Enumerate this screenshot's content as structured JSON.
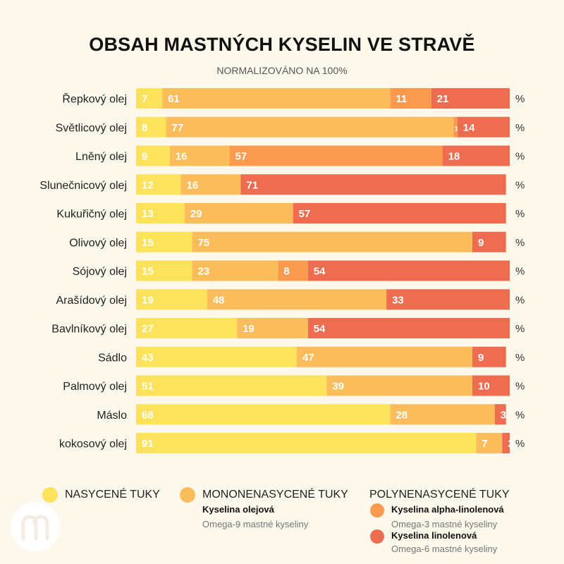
{
  "chart_data": {
    "type": "bar",
    "orientation": "horizontal",
    "stacked": true,
    "title": "OBSAH MASTNÝCH KYSELIN VE STRAVĚ",
    "subtitle": "NORMALIZOVÁNO NA 100%",
    "unit_label": "%",
    "xlim": [
      0,
      100
    ],
    "categories": [
      "Řepkový olej",
      "Světlicový olej",
      "Lněný olej",
      "Slunečnicový olej",
      "Kukuřičný olej",
      "Olivový olej",
      "Sójový olej",
      "Arašídový olej",
      "Bavlníkový olej",
      "Sádlo",
      "Palmový olej",
      "Máslo",
      "kokosový olej"
    ],
    "series": [
      {
        "name": "NASYCENÉ TUKY",
        "color": "#fde25c",
        "values": [
          7,
          8,
          9,
          12,
          13,
          15,
          15,
          19,
          27,
          43,
          51,
          68,
          91
        ]
      },
      {
        "name": "Kyselina olejová",
        "color": "#fbbd5c",
        "values": [
          61,
          77,
          16,
          16,
          29,
          75,
          23,
          48,
          19,
          47,
          39,
          28,
          7
        ]
      },
      {
        "name": "Kyselina alpha-linolenová",
        "color": "#f99a4f",
        "values": [
          11,
          1,
          57,
          0,
          0,
          0,
          8,
          0,
          0,
          0,
          0,
          0,
          0
        ]
      },
      {
        "name": "Kyselina linolenová",
        "color": "#ee6c50",
        "values": [
          21,
          14,
          18,
          71,
          57,
          9,
          54,
          33,
          54,
          9,
          10,
          3,
          2
        ]
      }
    ]
  },
  "legend": {
    "saturated": "NASYCENÉ TUKY",
    "mono": "MONONENASYCENÉ TUKY",
    "mono_acid": "Kyselina olejová",
    "mono_note": "Omega-9 mastné kyseliny",
    "poly": "POLYNENASYCENÉ TUKY",
    "ala": "Kyselina alpha-linolenová",
    "ala_note": "Omega-3 mastné kyseliny",
    "la": "Kyselina linolenová",
    "la_note": "Omega-6 mastné kyseliny"
  }
}
